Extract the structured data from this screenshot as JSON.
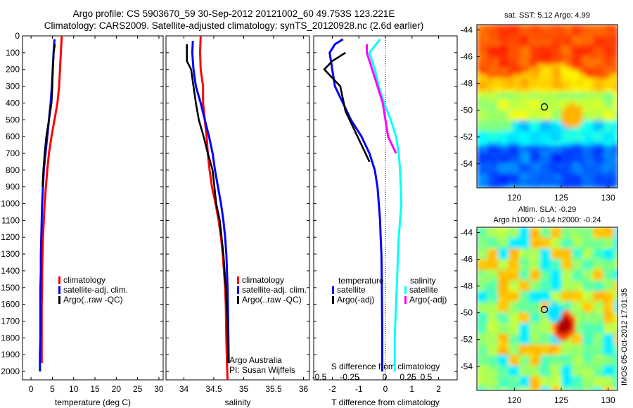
{
  "title": {
    "line1": "Argo profile: CS 5903670_59 30-Sep-2012 20121002_60 49.753S 123.221E",
    "line2": "Climatology: CARS2009. Satellite-adjusted climatology: synTS_20120928.nc (2.6d earlier)"
  },
  "stamp": "IMOS 05-Oct-2012 17:01:35",
  "colors": {
    "red": "#ff0000",
    "blue": "#0000ff",
    "black": "#000000",
    "cyan": "#00ffff",
    "magenta": "#ff00ff"
  },
  "chart_data": [
    {
      "type": "line",
      "id": "temperature",
      "xlabel": "temperature (deg C)",
      "xlim": [
        -2,
        31
      ],
      "ylim": [
        2050,
        0
      ],
      "x_ticks": [
        0,
        5,
        10,
        15,
        20,
        25,
        30
      ],
      "y_ticks": [
        0,
        100,
        200,
        300,
        400,
        500,
        600,
        700,
        800,
        900,
        1000,
        1100,
        1200,
        1300,
        1400,
        1500,
        1600,
        1700,
        1800,
        1900,
        2000
      ],
      "legend": [
        "climatology",
        "satellite-adj. clim.",
        "Argo(..raw -QC)"
      ],
      "series": [
        {
          "name": "climatology",
          "color": "red",
          "x": [
            7.2,
            7.0,
            6.8,
            6.7,
            6.6,
            6.2,
            5.5,
            4.8,
            4.2,
            3.8,
            3.5,
            3.2,
            3.0,
            2.8,
            2.7,
            2.6,
            2.6,
            2.5,
            2.5,
            2.5,
            2.5
          ],
          "y": [
            0,
            100,
            200,
            250,
            300,
            400,
            500,
            600,
            700,
            800,
            900,
            1000,
            1100,
            1200,
            1300,
            1400,
            1500,
            1600,
            1700,
            1800,
            1950
          ]
        },
        {
          "name": "satellite-adj. clim.",
          "color": "blue",
          "x": [
            5.5,
            5.3,
            5.1,
            4.9,
            4.6,
            4.2,
            3.8,
            3.4,
            3.0,
            2.8,
            2.6,
            2.5,
            2.4,
            2.3,
            2.3,
            2.2,
            2.2,
            2.2,
            2.2,
            2.1,
            2.1
          ],
          "y": [
            20,
            100,
            200,
            300,
            400,
            500,
            600,
            700,
            800,
            900,
            1000,
            1100,
            1200,
            1300,
            1400,
            1500,
            1600,
            1700,
            1800,
            1900,
            2000
          ]
        },
        {
          "name": "Argo(..raw -QC)",
          "color": "black",
          "x": [
            5.6,
            5.3,
            5.1,
            5.0,
            4.8,
            4.2,
            3.6,
            3.2,
            2.9,
            2.7
          ],
          "y": [
            50,
            100,
            200,
            300,
            400,
            500,
            600,
            700,
            800,
            900
          ]
        }
      ]
    },
    {
      "type": "line",
      "id": "salinity",
      "xlabel": "salinity",
      "xlim": [
        33.7,
        36.1
      ],
      "ylim": [
        2050,
        0
      ],
      "x_ticks": [
        34,
        34.5,
        35,
        35.5,
        36
      ],
      "legend": [
        "climatology",
        "satellite-adj. clim.",
        "Argo(..raw -QC)"
      ],
      "annotation": [
        "Argo Australia",
        "PI: Susan Wijffels"
      ],
      "series": [
        {
          "name": "climatology",
          "color": "red",
          "x": [
            34.28,
            34.27,
            34.28,
            34.32,
            34.32,
            34.35,
            34.38,
            34.4,
            34.43,
            34.47,
            34.53,
            34.58,
            34.62,
            34.65,
            34.67,
            34.69,
            34.7,
            34.71,
            34.72,
            34.73
          ],
          "y": [
            0,
            100,
            200,
            300,
            400,
            500,
            600,
            700,
            800,
            900,
            1000,
            1100,
            1200,
            1300,
            1400,
            1500,
            1600,
            1800,
            1950,
            2050
          ]
        },
        {
          "name": "satellite-adj. clim.",
          "color": "blue",
          "x": [
            34.15,
            34.14,
            34.16,
            34.2,
            34.28,
            34.35,
            34.42,
            34.48,
            34.52,
            34.57,
            34.62,
            34.66,
            34.69,
            34.71,
            34.72,
            34.73,
            34.74,
            34.75
          ],
          "y": [
            30,
            100,
            200,
            300,
            400,
            500,
            600,
            700,
            800,
            900,
            1000,
            1100,
            1200,
            1300,
            1400,
            1500,
            1700,
            1950
          ]
        },
        {
          "name": "Argo(..raw -QC)",
          "color": "black",
          "x": [
            34.05,
            34.05,
            34.12,
            34.16,
            34.2,
            34.25,
            34.33,
            34.4,
            34.48,
            34.54,
            34.6,
            34.66,
            34.7,
            34.73,
            34.74
          ],
          "y": [
            50,
            150,
            200,
            300,
            400,
            500,
            600,
            700,
            800,
            1000,
            1100,
            1300,
            1500,
            1700,
            1950
          ]
        }
      ]
    },
    {
      "type": "line",
      "id": "difference",
      "xlabel": "T difference from climatology",
      "top_xlabel": "S difference from climatology",
      "xlim": [
        -2.7,
        2.7
      ],
      "ylim": [
        2050,
        0
      ],
      "x_ticks": [
        -2,
        -1,
        0,
        1,
        2
      ],
      "top_ticks": [
        "-0.5",
        "-0.25",
        "0",
        "0.25",
        "0.5"
      ],
      "legend_titles": [
        "temperature",
        "salinity"
      ],
      "legend": [
        "satellite",
        "Argo(-adj)",
        "satellite",
        "Argo(-adj)"
      ],
      "series": [
        {
          "name": "satellite",
          "group": "temperature",
          "color": "blue",
          "x": [
            -1.6,
            -1.9,
            -2.1,
            -2.0,
            -1.9,
            -1.6,
            -1.3,
            -0.9,
            -0.6,
            -0.4,
            -0.3,
            -0.25,
            -0.2,
            -0.18,
            -0.15,
            -0.14,
            -0.13,
            -0.12,
            -0.12
          ],
          "y": [
            20,
            50,
            100,
            200,
            300,
            400,
            500,
            600,
            700,
            800,
            900,
            1000,
            1100,
            1200,
            1300,
            1400,
            1600,
            1800,
            2000
          ]
        },
        {
          "name": "Argo(-adj)",
          "group": "temperature",
          "color": "black",
          "x": [
            -1.5,
            -2.0,
            -2.3,
            -2.0,
            -1.7,
            -1.5,
            -1.2,
            -0.9,
            -0.6
          ],
          "y": [
            100,
            150,
            200,
            250,
            300,
            450,
            550,
            650,
            750
          ]
        },
        {
          "name": "satellite",
          "group": "salinity",
          "color": "cyan",
          "x": [
            -0.2,
            -0.6,
            -0.4,
            -0.25,
            -0.05,
            0.2,
            0.4,
            0.5,
            0.55,
            0.6,
            0.55,
            0.5,
            0.45,
            0.4,
            0.35,
            0.35,
            0.35
          ],
          "y": [
            20,
            100,
            200,
            300,
            400,
            500,
            600,
            700,
            800,
            1000,
            1100,
            1200,
            1400,
            1600,
            1800,
            1900,
            2000
          ]
        },
        {
          "name": "Argo(-adj)",
          "group": "salinity",
          "color": "magenta",
          "x": [
            -0.7,
            -0.7,
            -0.5,
            -0.3,
            -0.1,
            0.0,
            0.1,
            0.4
          ],
          "y": [
            50,
            100,
            200,
            300,
            400,
            500,
            600,
            700
          ]
        }
      ]
    },
    {
      "type": "heatmap",
      "id": "sst",
      "title": "sat. SST: 5.12  Argo: 4.99",
      "xlim": [
        116,
        131
      ],
      "ylim": [
        -55.8,
        -43.6
      ],
      "x_ticks": [
        120,
        125,
        130
      ],
      "y_ticks": [
        -44,
        -46,
        -48,
        -50,
        -52,
        -54
      ],
      "marker": [
        123.2,
        -49.75
      ]
    },
    {
      "type": "heatmap",
      "id": "sla",
      "title": "Altim. SLA: -0.29",
      "subtitle": "Argo h1000: -0.14 h2000: -0.24",
      "xlim": [
        116,
        131
      ],
      "ylim": [
        -55.8,
        -43.6
      ],
      "x_ticks": [
        120,
        125,
        130
      ],
      "y_ticks": [
        -44,
        -46,
        -48,
        -50,
        -52,
        -54
      ],
      "marker": [
        123.2,
        -49.75
      ]
    }
  ]
}
